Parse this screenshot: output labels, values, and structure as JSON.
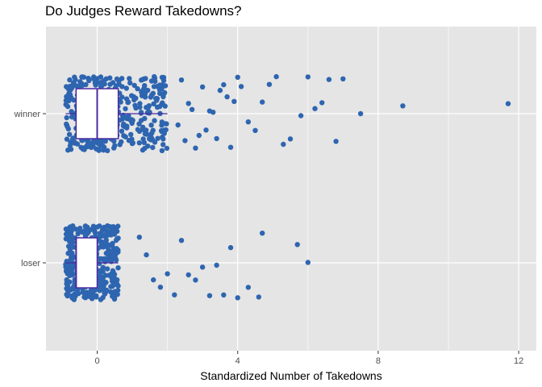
{
  "chart_data": {
    "type": "boxplot_jitter",
    "title": "Do Judges Reward Takedowns?",
    "xlabel": "Standardized Number of Takedowns",
    "ylabel": "",
    "xlim": [
      -1.45,
      12.45
    ],
    "x_ticks": [
      0,
      4,
      8,
      12
    ],
    "categories": [
      "loser",
      "winner"
    ],
    "grid": true,
    "colors": {
      "points": "#2e65b0",
      "box_border": "#4b2aa0",
      "box_fill": "#ffffff",
      "panel": "#e5e5e5",
      "grid": "#ffffff"
    },
    "boxes": [
      {
        "category": "winner",
        "min": -0.9,
        "q1": -0.6,
        "median": 0.0,
        "q3": 0.6,
        "max": 2.0
      },
      {
        "category": "loser",
        "min": -0.9,
        "q1": -0.6,
        "median": -0.6,
        "q3": 0.0,
        "max": 0.6
      }
    ],
    "outliers": {
      "winner": [
        2.3,
        2.4,
        2.5,
        2.6,
        2.7,
        2.8,
        2.9,
        3.0,
        3.1,
        3.2,
        3.3,
        3.4,
        3.5,
        3.6,
        3.7,
        3.8,
        3.9,
        4.0,
        4.1,
        4.3,
        4.5,
        4.7,
        4.9,
        5.1,
        5.3,
        5.5,
        5.8,
        6.0,
        6.2,
        6.4,
        6.6,
        6.8,
        7.0,
        7.5,
        8.7,
        11.7
      ],
      "loser": [
        1.2,
        1.4,
        1.6,
        1.8,
        2.0,
        2.2,
        2.4,
        2.6,
        2.8,
        3.0,
        3.2,
        3.4,
        3.6,
        3.8,
        4.0,
        4.3,
        4.6,
        4.7,
        5.7,
        6.0
      ]
    }
  }
}
